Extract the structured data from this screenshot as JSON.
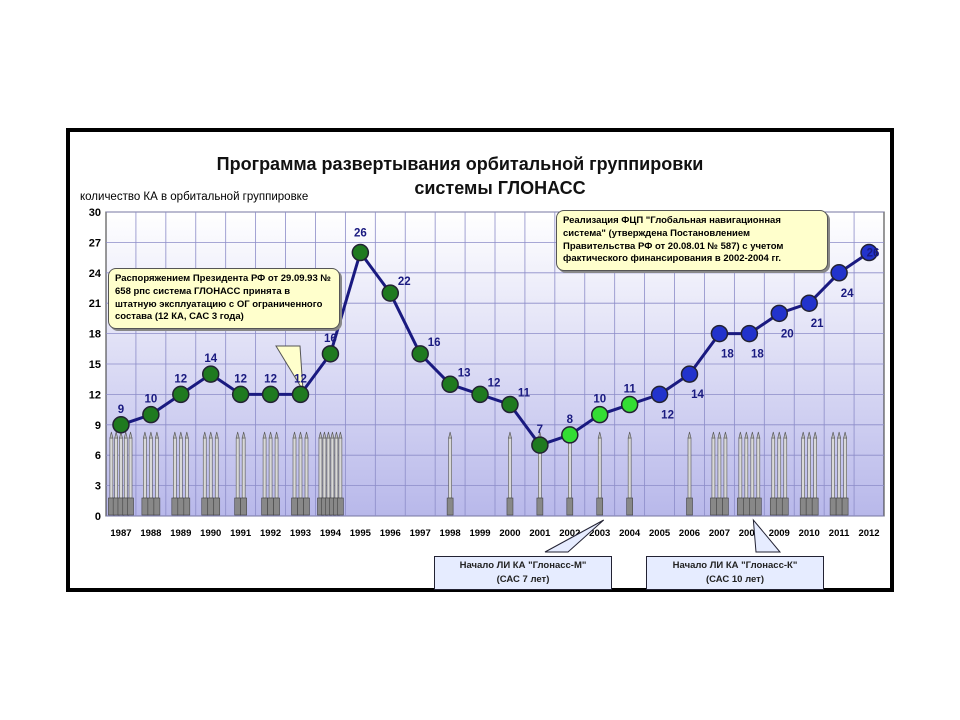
{
  "title_line1": "Программа развертывания орбитальной группировки",
  "title_line2": "системы ГЛОНАСС",
  "y_axis_label": "количество КА в орбитальной группировке",
  "callout_president": "Распоряжением Президента РФ от 29.09.93 № 658 рпс система ГЛОНАСС принята в штатную эксплуатацию с ОГ ограниченного состава (12 КА, САС 3 года)",
  "callout_fcp": "Реализация ФЦП \"Глобальная навигационная система\" (утверждена Постановлением Правительства РФ  от 20.08.01 № 587) с учетом фактического финансирования в 2002-2004 гг.",
  "box_m_line1": "Начало ЛИ КА \"Глонасс-М\"",
  "box_m_line2": "(САС 7 лет)",
  "box_k_line1": "Начало ЛИ КА \"Глонасс-К\"",
  "box_k_line2": "(САС 10 лет)",
  "colors": {
    "line": "#1a1a80",
    "marker_dark_green": "#1f7a1f",
    "marker_light_green": "#33dd33",
    "marker_blue": "#2233cc",
    "label": "#1a1a80",
    "plot_bg_top": "#ffffff",
    "plot_bg_bottom": "#b8b8ea"
  },
  "chart_data": {
    "type": "line",
    "title": "Программа развертывания орбитальной группировки системы ГЛОНАСС",
    "ylabel": "количество КА в орбитальной группировке",
    "xlabel": "",
    "ylim": [
      0,
      30
    ],
    "yticks": [
      0,
      3,
      6,
      9,
      12,
      15,
      18,
      21,
      24,
      27,
      30
    ],
    "grid": true,
    "categories": [
      "1987",
      "1988",
      "1989",
      "1990",
      "1991",
      "1992",
      "1993",
      "1994",
      "1995",
      "1996",
      "1997",
      "1998",
      "1999",
      "2000",
      "2001",
      "2002",
      "2003",
      "2004",
      "2005",
      "2006",
      "2007",
      "2008",
      "2009",
      "2010",
      "2011",
      "2012"
    ],
    "values": [
      9,
      10,
      12,
      14,
      12,
      12,
      12,
      16,
      26,
      22,
      16,
      13,
      12,
      11,
      7,
      8,
      10,
      11,
      12,
      14,
      18,
      18,
      20,
      21,
      24,
      26
    ],
    "marker_types": [
      "dark",
      "dark",
      "dark",
      "dark",
      "dark",
      "dark",
      "dark",
      "dark",
      "dark",
      "dark",
      "dark",
      "dark",
      "dark",
      "dark",
      "dark",
      "light",
      "light",
      "light",
      "blue",
      "blue",
      "blue",
      "blue",
      "blue",
      "blue",
      "blue",
      "blue"
    ],
    "launches_per_year": [
      5,
      3,
      3,
      3,
      2,
      3,
      3,
      6,
      0,
      0,
      0,
      1,
      0,
      1,
      1,
      1,
      1,
      1,
      0,
      1,
      3,
      4,
      3,
      3,
      3,
      0
    ]
  }
}
